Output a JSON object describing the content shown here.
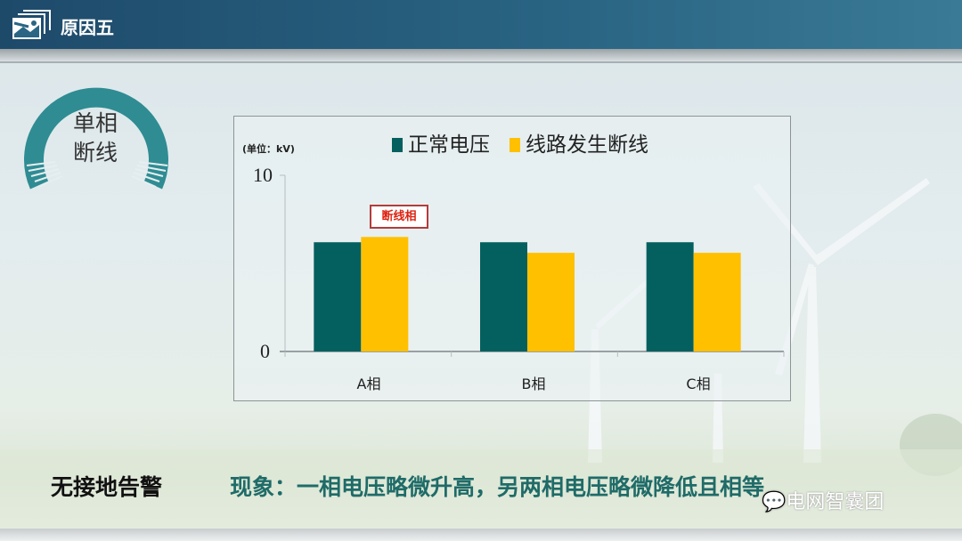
{
  "header": {
    "title": "原因五",
    "icon": "picture-frame-icon"
  },
  "badge": {
    "line1": "单相",
    "line2": "断线"
  },
  "chart_data": {
    "type": "bar",
    "unit_label": "(单位：kV)",
    "categories": [
      "A相",
      "B相",
      "C相"
    ],
    "series": [
      {
        "name": "正常电压",
        "color": "#03605f",
        "values": [
          6.2,
          6.2,
          6.2
        ]
      },
      {
        "name": "线路发生断线",
        "color": "#ffc000",
        "values": [
          6.5,
          5.6,
          5.6
        ]
      }
    ],
    "ylim": [
      0,
      10
    ],
    "yticks": [
      "0",
      "10"
    ],
    "annotation": {
      "text": "断线相",
      "category": "A相",
      "series": "线路发生断线"
    },
    "legend": "top"
  },
  "footer": {
    "label": "无接地告警",
    "description": "现象：一相电压略微升高，另两相电压略微降低且相等",
    "watermark": "电网智囊团"
  }
}
